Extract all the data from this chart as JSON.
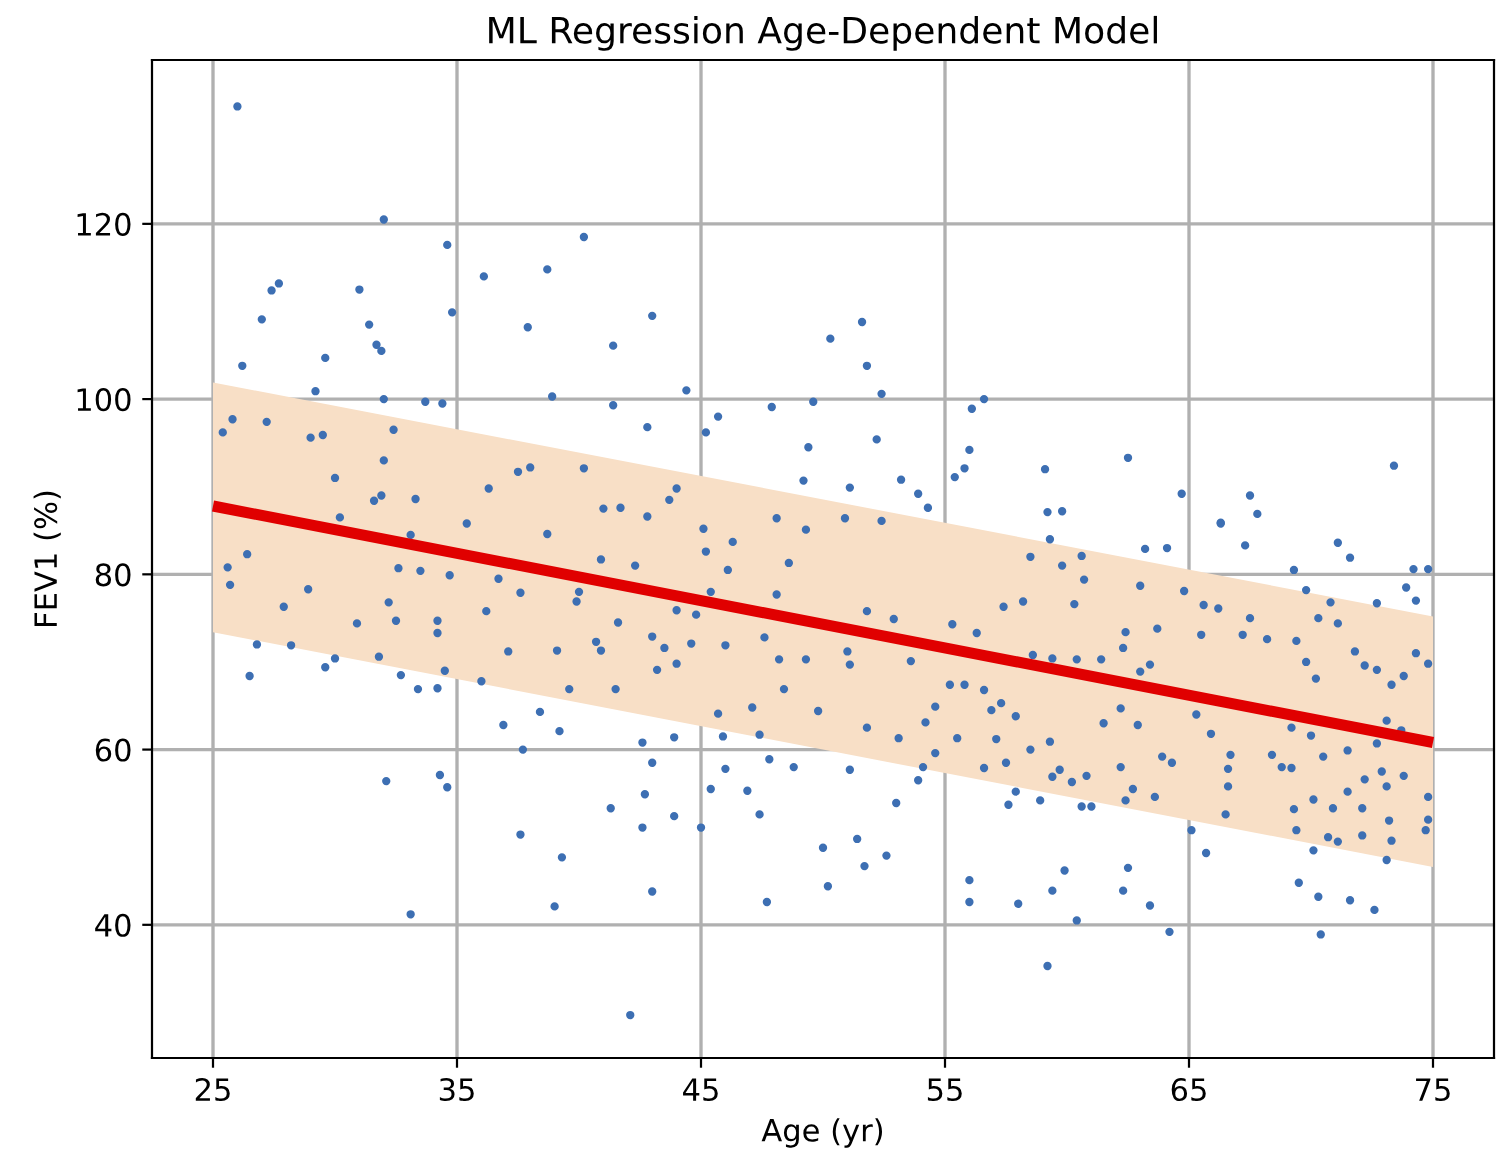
{
  "chart_data": {
    "type": "scatter",
    "title": "ML Regression Age-Dependent Model",
    "xlabel": "Age (yr)",
    "ylabel": "FEV1 (%)",
    "xlim": [
      22.5,
      77.5
    ],
    "xticks": [
      25,
      35,
      45,
      55,
      65,
      75
    ],
    "ylim": [
      24.8,
      138.7
    ],
    "yticks": [
      40,
      60,
      80,
      100,
      120
    ],
    "grid": true,
    "marker": "circle",
    "series": [
      {
        "color": "#3d6fb3",
        "x": [
          26.0,
          32.0,
          34.6,
          40.2,
          36.1,
          38.7,
          27.4,
          27.7,
          31.0,
          27.0,
          31.4,
          34.8,
          37.9,
          43.0,
          41.4,
          31.7,
          31.9,
          26.2,
          29.6,
          29.2,
          32.0,
          33.7,
          34.4,
          38.9,
          41.4,
          44.4,
          25.4,
          25.8,
          27.2,
          29.0,
          29.5,
          32.4,
          32.0,
          30.0,
          31.6,
          31.9,
          33.3,
          30.2,
          37.5,
          38.0,
          36.3,
          40.2,
          42.8,
          45.2,
          45.7,
          47.9,
          49.6,
          49.4,
          49.2,
          44.0,
          43.7,
          35.4,
          41.0,
          41.7,
          42.8,
          48.1,
          51.6,
          50.3,
          51.8,
          52.4,
          52.2,
          56.6,
          56.1,
          56.0,
          55.8,
          55.4,
          59.1,
          62.5,
          64.7,
          67.5,
          67.8,
          73.4,
          66.3,
          59.2,
          59.8,
          53.2,
          53.9,
          54.3,
          51.1,
          50.9,
          52.4,
          42.1,
          33.1,
          39.0,
          47.7,
          43.0,
          39.3,
          37.6,
          42.6,
          45.0,
          41.3,
          43.9,
          47.4,
          42.7,
          45.4,
          46.9,
          32.1,
          34.3,
          34.6,
          46.0,
          43.0,
          48.8,
          47.8,
          42.6,
          43.9,
          37.7,
          36.9,
          38.4,
          39.2,
          26.5,
          26.8,
          28.2,
          29.6,
          30.0,
          32.7,
          33.4,
          34.2,
          31.8,
          34.5,
          36.0,
          39.6,
          41.5,
          37.1,
          39.1,
          45.7,
          45.9,
          47.1,
          47.4,
          25.6,
          26.4,
          25.7,
          27.9,
          28.9,
          30.9,
          32.5,
          32.2,
          34.2,
          34.2,
          32.6,
          33.5,
          34.7,
          36.2,
          36.7,
          37.6,
          33.1,
          38.7,
          39.9,
          40.0,
          40.9,
          42.3,
          41.6,
          40.7,
          40.9,
          43.0,
          43.5,
          44.0,
          43.2,
          44.0,
          44.8,
          45.4,
          44.6,
          46.0,
          47.6,
          48.2,
          48.4,
          48.1,
          48.6,
          49.3,
          46.1,
          46.3,
          45.1,
          45.2,
          59.2,
          70.4,
          64.2,
          60.4,
          56.0,
          58.0,
          63.4,
          71.6,
          72.6,
          70.3,
          69.5,
          56.0,
          59.4,
          62.3,
          62.5,
          59.9,
          50.2,
          51.7,
          50.0,
          51.4,
          52.6,
          65.1,
          65.7,
          70.1,
          73.1,
          74.7,
          74.8,
          74.8,
          57.6,
          57.9,
          58.9,
          60.6,
          61.0,
          62.4,
          62.7,
          63.6,
          66.5,
          66.6,
          69.3,
          69.4,
          70.9,
          72.1,
          70.7,
          71.1,
          72.1,
          73.2,
          73.3,
          51.1,
          53.0,
          53.9,
          54.1,
          54.6,
          56.6,
          57.5,
          58.5,
          59.4,
          59.7,
          60.2,
          60.8,
          62.2,
          63.9,
          64.3,
          66.6,
          66.7,
          68.4,
          68.8,
          69.2,
          70.1,
          71.5,
          72.2,
          72.9,
          73.8,
          73.1,
          59.3,
          63.2,
          64.1,
          67.3,
          71.1,
          71.6,
          69.3,
          69.8,
          72.7,
          73.9,
          74.3,
          74.2,
          74.8,
          66.3,
          58.5,
          59.8,
          60.6,
          60.7,
          63.0,
          64.8,
          65.6,
          66.2,
          67.5,
          70.8,
          70.3,
          55.3,
          57.4,
          58.2,
          60.3,
          62.4,
          63.7,
          56.3,
          58.6,
          59.4,
          60.4,
          61.4,
          62.3,
          63.0,
          63.4,
          55.2,
          55.8,
          56.6,
          56.9,
          57.3,
          57.9,
          55.5,
          57.1,
          59.3,
          61.5,
          62.2,
          62.9,
          65.3,
          65.9,
          65.5,
          67.2,
          68.2,
          69.4,
          69.8,
          70.2,
          71.1,
          71.8,
          72.2,
          72.7,
          73.3,
          73.8,
          74.3,
          74.8,
          73.1,
          73.7,
          72.7,
          69.2,
          70.0,
          70.5,
          71.5,
          51.8,
          51.8,
          49.3,
          49.8,
          51.1,
          51.0,
          52.9,
          53.6,
          54.2,
          53.1,
          54.6
        ],
        "values": [
          133.4,
          120.5,
          117.6,
          118.5,
          114.0,
          114.8,
          112.4,
          113.2,
          112.5,
          109.1,
          108.5,
          109.9,
          108.2,
          109.5,
          106.1,
          106.2,
          105.5,
          103.8,
          104.7,
          100.9,
          100.0,
          99.7,
          99.5,
          100.3,
          99.3,
          101.0,
          96.2,
          97.7,
          97.4,
          95.6,
          95.9,
          96.5,
          93.0,
          91.0,
          88.4,
          89.0,
          88.6,
          86.5,
          91.7,
          92.2,
          89.8,
          92.1,
          96.8,
          96.2,
          98.0,
          99.1,
          99.7,
          94.5,
          90.7,
          89.8,
          88.5,
          85.8,
          87.5,
          87.6,
          86.6,
          86.4,
          108.8,
          106.9,
          103.8,
          100.6,
          95.4,
          100.0,
          98.9,
          94.2,
          92.1,
          91.1,
          92.0,
          93.3,
          89.2,
          89.0,
          86.9,
          92.4,
          85.9,
          87.1,
          87.2,
          90.8,
          89.2,
          87.6,
          89.9,
          86.4,
          86.1,
          29.7,
          41.2,
          42.1,
          42.6,
          43.8,
          47.7,
          50.3,
          51.1,
          51.1,
          53.3,
          52.4,
          52.6,
          54.9,
          55.5,
          55.3,
          56.4,
          57.1,
          55.7,
          57.8,
          58.5,
          58.0,
          58.9,
          60.8,
          61.4,
          60.0,
          62.8,
          64.3,
          62.1,
          68.4,
          72.0,
          71.9,
          69.4,
          70.4,
          68.5,
          66.9,
          67.0,
          70.6,
          69.0,
          67.8,
          66.9,
          66.9,
          71.2,
          71.3,
          64.1,
          61.5,
          64.8,
          61.7,
          80.8,
          82.3,
          78.8,
          76.3,
          78.3,
          74.4,
          74.7,
          76.8,
          74.7,
          73.3,
          80.7,
          80.4,
          79.9,
          75.8,
          79.5,
          77.9,
          84.5,
          84.6,
          76.9,
          78.0,
          81.7,
          81.0,
          74.5,
          72.3,
          71.3,
          72.9,
          71.6,
          69.8,
          69.1,
          75.9,
          75.4,
          78.0,
          72.1,
          71.9,
          72.8,
          70.3,
          66.9,
          77.7,
          81.3,
          85.1,
          80.5,
          83.7,
          85.2,
          82.6,
          35.3,
          38.9,
          39.2,
          40.5,
          42.6,
          42.4,
          42.2,
          42.8,
          41.7,
          43.2,
          44.8,
          45.1,
          43.9,
          43.9,
          46.5,
          46.2,
          44.4,
          46.7,
          48.8,
          49.8,
          47.9,
          50.8,
          48.2,
          48.5,
          47.4,
          50.8,
          52.0,
          54.6,
          53.7,
          55.2,
          54.2,
          53.5,
          53.5,
          54.2,
          55.5,
          54.6,
          52.6,
          55.8,
          53.2,
          50.8,
          53.3,
          53.3,
          50.0,
          49.5,
          50.2,
          51.9,
          49.6,
          57.7,
          53.9,
          56.5,
          58.0,
          59.6,
          57.9,
          58.5,
          60.0,
          56.9,
          57.7,
          56.3,
          57.0,
          58.0,
          59.2,
          58.5,
          57.8,
          59.4,
          59.4,
          58.0,
          57.9,
          54.3,
          55.2,
          56.6,
          57.5,
          57.0,
          55.8,
          84.0,
          82.9,
          83.0,
          83.3,
          83.6,
          81.9,
          80.5,
          78.2,
          76.7,
          78.5,
          77.0,
          80.6,
          80.6,
          85.8,
          82.0,
          81.0,
          82.1,
          79.4,
          78.7,
          78.1,
          76.5,
          76.1,
          75.0,
          76.8,
          75.0,
          74.3,
          76.3,
          76.9,
          76.6,
          73.4,
          73.8,
          73.3,
          70.8,
          70.4,
          70.3,
          70.3,
          71.6,
          68.9,
          69.7,
          67.4,
          67.4,
          66.8,
          64.5,
          65.3,
          63.8,
          61.3,
          61.2,
          60.9,
          63.0,
          64.7,
          62.8,
          64.0,
          61.8,
          73.1,
          73.1,
          72.6,
          72.4,
          70.0,
          68.1,
          74.4,
          71.2,
          69.6,
          69.1,
          67.4,
          68.4,
          71.0,
          69.8,
          63.3,
          62.2,
          60.7,
          62.5,
          61.6,
          59.2,
          59.9,
          62.5,
          75.8,
          70.3,
          64.4,
          69.7,
          71.2,
          74.9,
          70.1,
          63.1,
          61.3,
          64.9
        ]
      },
      {
        "type": "line",
        "color": "#e00000",
        "marker": "none",
        "line_style": "solid",
        "x": [
          25,
          75
        ],
        "values": [
          87.8,
          60.8
        ],
        "lower": [
          73.4,
          46.6
        ],
        "upper": [
          101.9,
          75.2
        ]
      }
    ]
  }
}
